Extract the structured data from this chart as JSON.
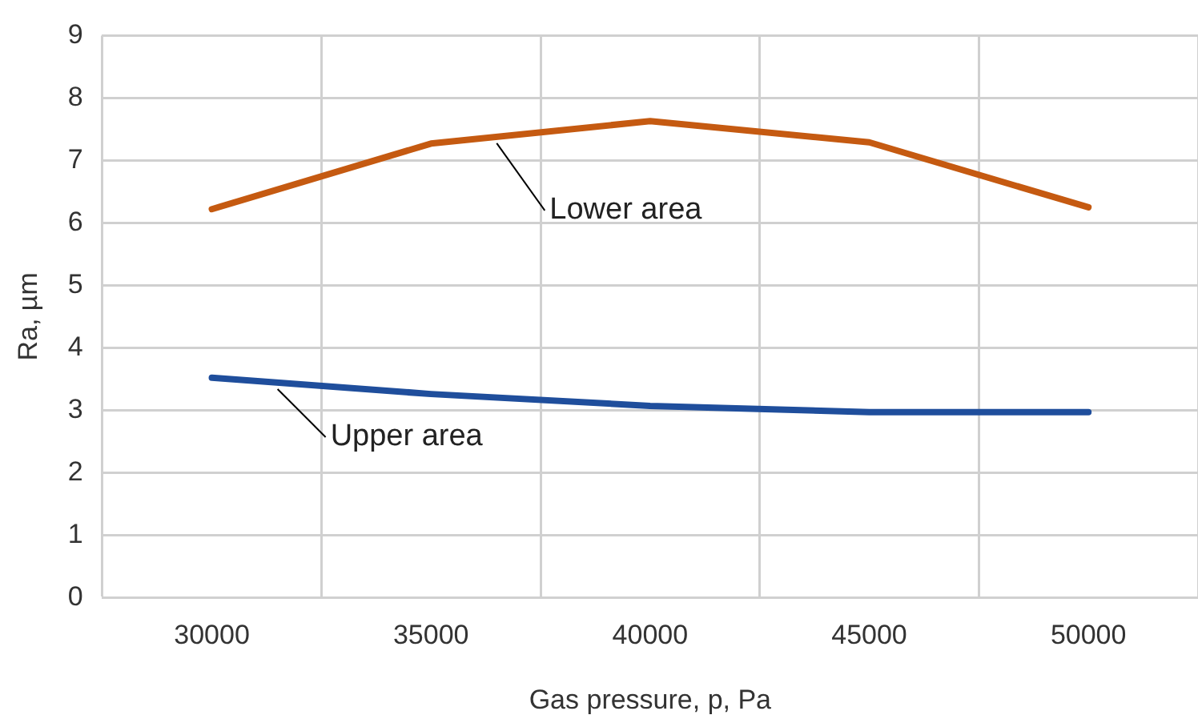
{
  "chart_data": {
    "type": "line",
    "xlabel": "Gas pressure, p, Pa",
    "ylabel": "Ra, µm",
    "categories": [
      "30000",
      "35000",
      "40000",
      "45000",
      "50000"
    ],
    "series": [
      {
        "name": "Lower area",
        "color": "#c55a11",
        "values": [
          6.22,
          7.27,
          7.63,
          7.29,
          6.25
        ]
      },
      {
        "name": "Upper area",
        "color": "#1f4e9c",
        "values": [
          3.52,
          3.26,
          3.07,
          2.97,
          2.97
        ]
      }
    ],
    "ylim": [
      0,
      9
    ],
    "yticks": [
      0,
      1,
      2,
      3,
      4,
      5,
      6,
      7,
      8,
      9
    ],
    "grid": true,
    "legend": false,
    "marker": "none",
    "line_style": "solid"
  }
}
